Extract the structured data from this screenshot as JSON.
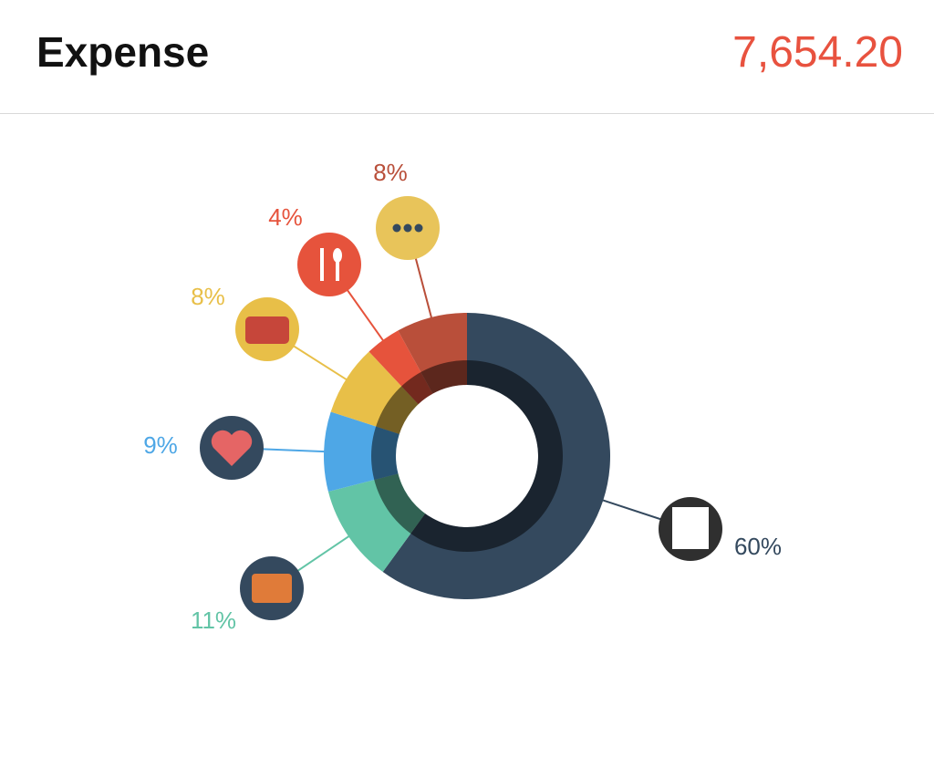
{
  "header": {
    "title": "Expense",
    "total": "7,654.20"
  },
  "chart_data": {
    "type": "donut",
    "values": [
      60,
      11,
      9,
      8,
      4,
      8
    ],
    "value_labels": [
      "60%",
      "11%",
      "9%",
      "8%",
      "4%",
      "8%"
    ],
    "colors": [
      "#34495e",
      "#62c4a6",
      "#4ea7e6",
      "#e8bf48",
      "#e6533c",
      "#b94f3a"
    ]
  }
}
